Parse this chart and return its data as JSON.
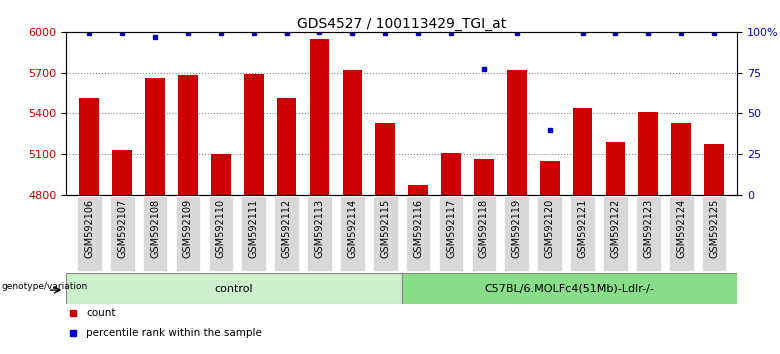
{
  "title": "GDS4527 / 100113429_TGI_at",
  "samples": [
    "GSM592106",
    "GSM592107",
    "GSM592108",
    "GSM592109",
    "GSM592110",
    "GSM592111",
    "GSM592112",
    "GSM592113",
    "GSM592114",
    "GSM592115",
    "GSM592116",
    "GSM592117",
    "GSM592118",
    "GSM592119",
    "GSM592120",
    "GSM592121",
    "GSM592122",
    "GSM592123",
    "GSM592124",
    "GSM592125"
  ],
  "counts": [
    5510,
    5130,
    5660,
    5680,
    5100,
    5690,
    5510,
    5950,
    5720,
    5330,
    4870,
    5110,
    5060,
    5720,
    5050,
    5440,
    5190,
    5410,
    5330,
    5170
  ],
  "percentiles": [
    99,
    99,
    97,
    99,
    99,
    99,
    99,
    100,
    99,
    99,
    99,
    99,
    77,
    99,
    40,
    99,
    99,
    99,
    99,
    99
  ],
  "group_labels": [
    "control",
    "C57BL/6.MOLFc4(51Mb)-Ldlr-/-"
  ],
  "ctrl_count": 10,
  "c57_count": 10,
  "bar_color": "#cc0000",
  "percentile_color": "#0000cc",
  "ylim_left": [
    4800,
    6000
  ],
  "ylim_right": [
    0,
    100
  ],
  "yticks_left": [
    4800,
    5100,
    5400,
    5700,
    6000
  ],
  "yticks_right": [
    0,
    25,
    50,
    75,
    100
  ],
  "ylabel_left_color": "#cc0000",
  "ylabel_right_color": "#0000cc",
  "plot_bg": "#ffffff",
  "title_fontsize": 10,
  "tick_fontsize": 7,
  "legend_label_count": "count",
  "legend_label_percentile": "percentile rank within the sample",
  "genotype_label": "genotype/variation",
  "ctrl_color": "#ccf0cc",
  "c57_color": "#88dd88",
  "xtick_bg": "#d8d8d8"
}
